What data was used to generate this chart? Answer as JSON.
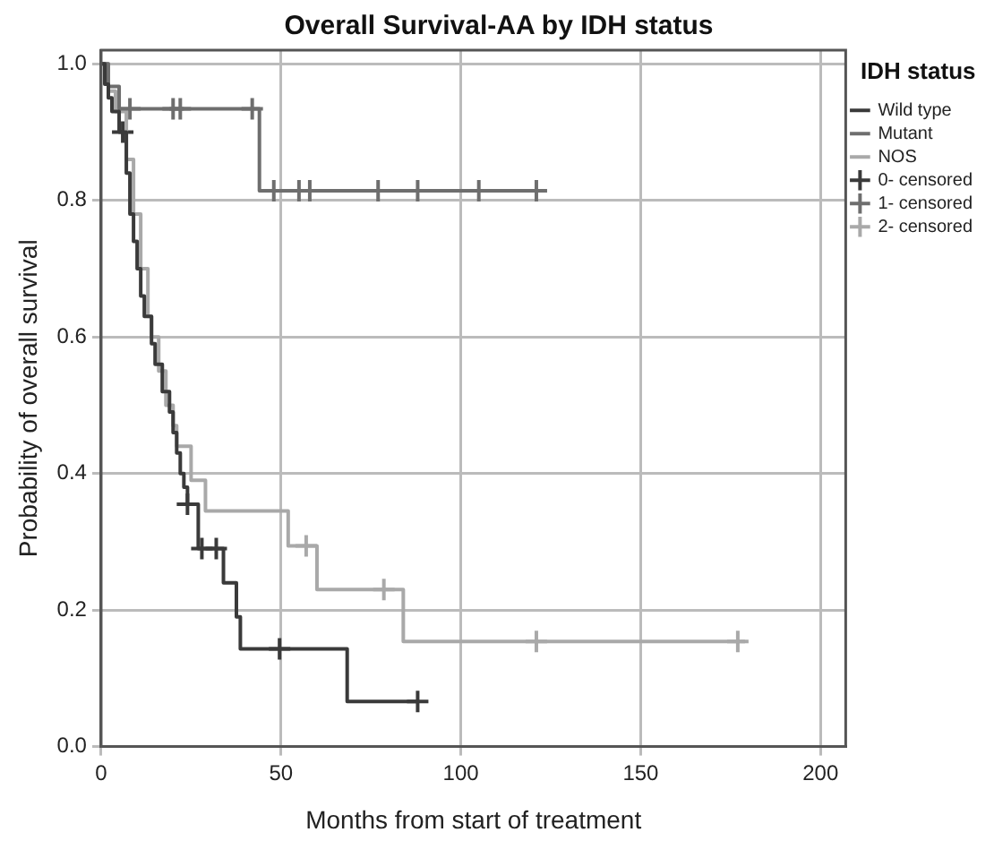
{
  "chart_data": {
    "type": "step",
    "title": "Overall Survival-AA by IDH status",
    "xlabel": "Months from start of treatment",
    "ylabel": "Probability of overall survival",
    "legend_title": "IDH status",
    "legend": "right",
    "grid": true,
    "xlim": [
      0,
      207
    ],
    "ylim": [
      0,
      1.02
    ],
    "xticks": [
      0,
      50,
      100,
      150,
      200
    ],
    "yticks": [
      {
        "value": 0,
        "label": "0.0"
      },
      {
        "value": 0.2,
        "label": "0.2"
      },
      {
        "value": 0.4,
        "label": "0.4"
      },
      {
        "value": 0.6,
        "label": "0.6"
      },
      {
        "value": 0.8,
        "label": "0.8"
      },
      {
        "value": 1,
        "label": "1.0"
      }
    ],
    "series": [
      {
        "name": "Wild type",
        "color": "#3a3a3a",
        "x": [
          0,
          1,
          2,
          3,
          5,
          7,
          8,
          9,
          10,
          11,
          12,
          14,
          15,
          17,
          19,
          20,
          21,
          22,
          23,
          24,
          27,
          34,
          37.6,
          38.7,
          68.4,
          88
        ],
        "values": [
          1,
          0.97,
          0.95,
          0.93,
          0.9,
          0.84,
          0.78,
          0.74,
          0.7,
          0.66,
          0.63,
          0.59,
          0.56,
          0.52,
          0.49,
          0.46,
          0.43,
          0.4,
          0.38,
          0.355,
          0.29,
          0.24,
          0.19,
          0.143,
          0.066,
          0.066
        ]
      },
      {
        "name": "Mutant",
        "color": "#6e6e6e",
        "x": [
          0,
          2,
          5,
          44,
          122
        ],
        "values": [
          1,
          0.967,
          0.934,
          0.814,
          0.814
        ]
      },
      {
        "name": "NOS",
        "color": "#a9a9a9",
        "x": [
          0,
          2,
          4,
          7,
          9,
          11,
          13,
          14,
          16,
          18,
          20,
          21,
          25,
          29,
          52,
          60,
          84,
          179
        ],
        "values": [
          1,
          0.96,
          0.93,
          0.86,
          0.78,
          0.7,
          0.63,
          0.6,
          0.55,
          0.5,
          0.47,
          0.44,
          0.39,
          0.345,
          0.294,
          0.23,
          0.154,
          0.154
        ]
      },
      {
        "name": "0- censored",
        "type": "scatter",
        "marker": "cross",
        "color": "#3a3a3a",
        "x": [
          6,
          24,
          28,
          32,
          49.6,
          88
        ],
        "values": [
          0.9,
          0.355,
          0.29,
          0.29,
          0.143,
          0.066
        ]
      },
      {
        "name": "1- censored",
        "type": "scatter",
        "marker": "cross",
        "color": "#6e6e6e",
        "x": [
          8,
          20,
          22,
          42,
          48,
          55,
          58,
          77,
          88,
          105,
          121
        ],
        "values": [
          0.934,
          0.934,
          0.934,
          0.934,
          0.814,
          0.814,
          0.814,
          0.814,
          0.814,
          0.814,
          0.814
        ]
      },
      {
        "name": "2- censored",
        "type": "scatter",
        "marker": "cross",
        "color": "#a9a9a9",
        "x": [
          57,
          78.6,
          121,
          177
        ],
        "values": [
          0.294,
          0.23,
          0.154,
          0.154
        ]
      }
    ]
  }
}
